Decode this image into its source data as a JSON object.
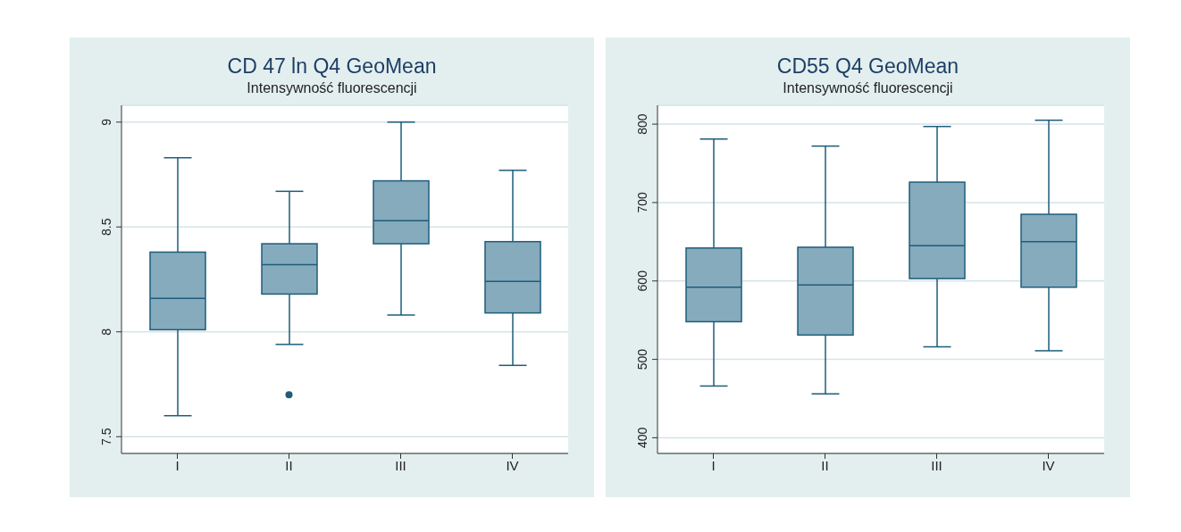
{
  "chart_data": [
    {
      "type": "box",
      "title": "CD 47 ln Q4 GeoMean",
      "subtitle": "Intensywność fluorescencji",
      "categories": [
        "I",
        "II",
        "III",
        "IV"
      ],
      "color": "#86abbd",
      "ylim": [
        7.42,
        9.08
      ],
      "yticks": [
        7.5,
        8,
        8.5,
        9
      ],
      "grid": "y",
      "boxes": [
        {
          "low": 7.6,
          "q1": 8.01,
          "median": 8.16,
          "q3": 8.38,
          "high": 8.83
        },
        {
          "low": 7.94,
          "q1": 8.18,
          "median": 8.32,
          "q3": 8.42,
          "high": 8.67,
          "outliers": [
            7.7
          ]
        },
        {
          "low": 8.08,
          "q1": 8.42,
          "median": 8.53,
          "q3": 8.72,
          "high": 9.0
        },
        {
          "low": 7.84,
          "q1": 8.09,
          "median": 8.24,
          "q3": 8.43,
          "high": 8.77
        }
      ]
    },
    {
      "type": "box",
      "title": "CD55 Q4 GeoMean",
      "subtitle": "Intensywność fluorescencji",
      "categories": [
        "I",
        "II",
        "III",
        "IV"
      ],
      "color": "#86abbd",
      "ylim": [
        380,
        824
      ],
      "yticks": [
        400,
        500,
        600,
        700,
        800
      ],
      "grid": "y",
      "boxes": [
        {
          "low": 466,
          "q1": 548,
          "median": 592,
          "q3": 642,
          "high": 781
        },
        {
          "low": 456,
          "q1": 531,
          "median": 595,
          "q3": 643,
          "high": 772
        },
        {
          "low": 516,
          "q1": 603,
          "median": 645,
          "q3": 726,
          "high": 797
        },
        {
          "low": 511,
          "q1": 592,
          "median": 650,
          "q3": 685,
          "high": 805
        }
      ]
    }
  ]
}
